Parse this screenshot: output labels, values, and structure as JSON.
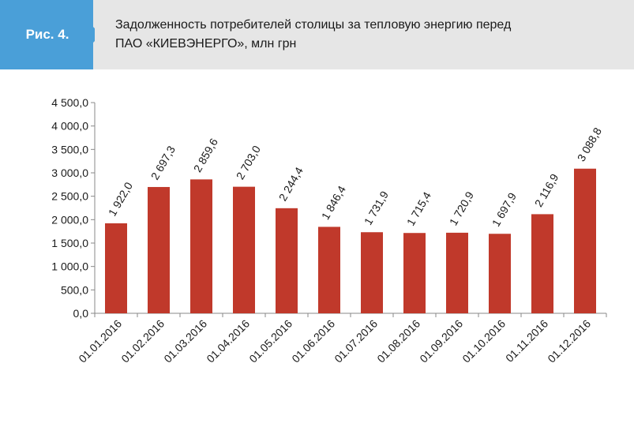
{
  "header": {
    "figure_label": "Рис. 4.",
    "title_line1": "Задолженность потребителей столицы за тепловую энергию перед",
    "title_line2": "ПАО «КИЕВЭНЕРГО», млн грн"
  },
  "colors": {
    "bar": "#c0392b",
    "badge": "#4a9fd8",
    "header_bg": "#e6e6e6",
    "axis": "#888888"
  },
  "chart_data": {
    "type": "bar",
    "categories": [
      "01.01.2016",
      "01.02.2016",
      "01.03.2016",
      "01.04.2016",
      "01.05.2016",
      "01.06.2016",
      "01.07.2016",
      "01.08.2016",
      "01.09.2016",
      "01.10.2016",
      "01.11.2016",
      "01.12.2016"
    ],
    "values": [
      1922.0,
      2697.3,
      2859.6,
      2703.0,
      2244.4,
      1846.4,
      1731.9,
      1715.4,
      1720.9,
      1697.9,
      2116.9,
      3088.8
    ],
    "value_labels": [
      "1 922,0",
      "2 697,3",
      "2 859,6",
      "2 703,0",
      "2 244,4",
      "1 846,4",
      "1 731,9",
      "1 715,4",
      "1 720,9",
      "1 697,9",
      "2 116,9",
      "3 088,8"
    ],
    "ylim": [
      0,
      4500
    ],
    "yticks": [
      {
        "value": 0,
        "label": "0,0"
      },
      {
        "value": 500,
        "label": "500,0"
      },
      {
        "value": 1000,
        "label": "1 000,0"
      },
      {
        "value": 1500,
        "label": "1 500,0"
      },
      {
        "value": 2000,
        "label": "2 000,0"
      },
      {
        "value": 2500,
        "label": "2 500,0"
      },
      {
        "value": 3000,
        "label": "3 000,0"
      },
      {
        "value": 3500,
        "label": "3 500,0"
      },
      {
        "value": 4000,
        "label": "4 000,0"
      },
      {
        "value": 4500,
        "label": "4 500,0"
      }
    ],
    "grid": false,
    "legend": "none"
  }
}
